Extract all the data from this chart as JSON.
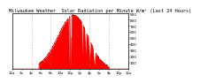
{
  "title": "Milwaukee Weather  Solar Radiation per Minute W/m² (Last 24 Hours)",
  "title_fontsize": 3.8,
  "bg_color": "#ffffff",
  "plot_bg_color": "#ffffff",
  "fill_color": "#ff0000",
  "line_color": "#cc0000",
  "grid_color": "#888888",
  "border_color": "#000000",
  "ylim": [
    0,
    900
  ],
  "yticks": [
    100,
    200,
    300,
    400,
    500,
    600,
    700,
    800,
    900
  ],
  "ylabel_fontsize": 3.0,
  "xlabel_fontsize": 2.8,
  "num_points": 1440,
  "peak_hour": 12.8,
  "peak_value": 870,
  "sunrise_hour": 5.5,
  "sunset_hour": 20.0,
  "xtick_hours": [
    0,
    2,
    4,
    6,
    8,
    10,
    12,
    14,
    16,
    18,
    20,
    22,
    24
  ],
  "xtick_labels": [
    "12a",
    "2a",
    "4a",
    "6a",
    "8a",
    "10a",
    "12p",
    "2p",
    "4p",
    "6p",
    "8p",
    "10p",
    "12a"
  ],
  "vgrid_hours": [
    4,
    8,
    12,
    16,
    20
  ]
}
